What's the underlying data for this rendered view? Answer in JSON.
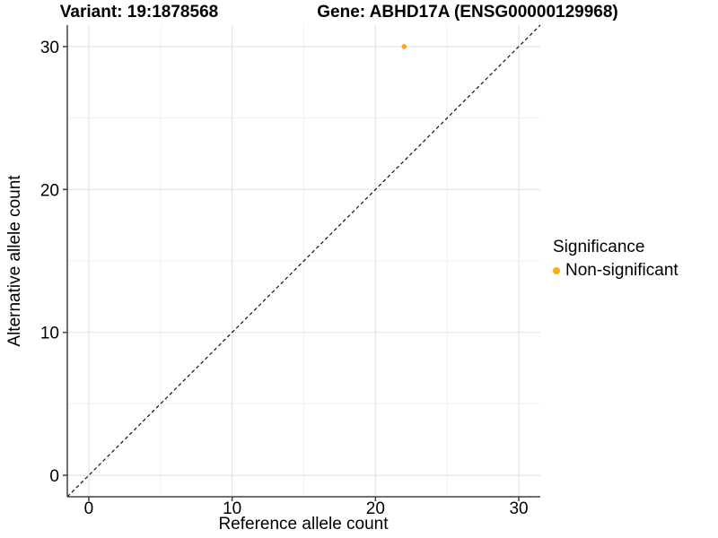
{
  "titles": {
    "variant": "Variant: 19:1878568",
    "gene": "Gene: ABHD17A (ENSG00000129968)"
  },
  "chart_data": {
    "type": "scatter",
    "xlabel": "Reference allele count",
    "ylabel": "Alternative allele count",
    "xlim": [
      -1.5,
      31.5
    ],
    "ylim": [
      -1.5,
      31.5
    ],
    "x_ticks": [
      0,
      10,
      20,
      30
    ],
    "y_ticks": [
      0,
      10,
      20,
      30
    ],
    "x_minor_ticks": [
      5,
      15,
      25
    ],
    "y_minor_ticks": [
      5,
      15,
      25
    ],
    "grid": true,
    "identity_line": {
      "slope": 1,
      "intercept": 0,
      "style": "dashed",
      "color": "#111111"
    },
    "series": [
      {
        "name": "Non-significant",
        "color": "#FFA51F",
        "marker": "circle",
        "points": [
          {
            "x": 22,
            "y": 30
          }
        ]
      }
    ],
    "legend": {
      "title": "Significance",
      "position": "right",
      "entries": [
        {
          "label": "Non-significant",
          "color": "#FFA51F",
          "marker": "circle"
        }
      ]
    }
  },
  "colors": {
    "background": "#FFFFFF",
    "axis_line": "#404040",
    "tick_mark": "#404040",
    "grid_major": "#E4E4E4",
    "grid_minor": "#F1F1F1",
    "text": "#000000"
  }
}
